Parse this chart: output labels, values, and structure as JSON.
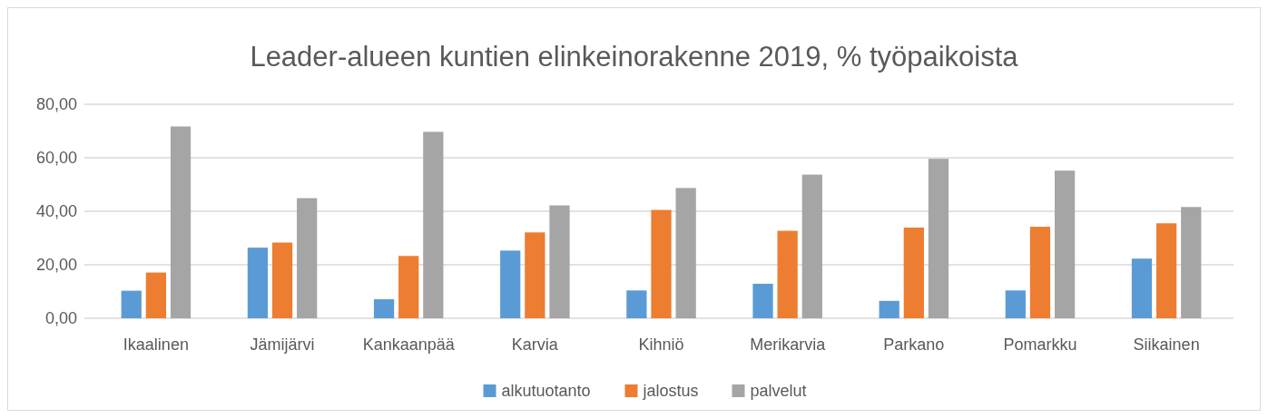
{
  "chart_data": {
    "type": "bar",
    "title": "Leader-alueen kuntien elinkeinorakenne 2019, % työpaikoista",
    "categories": [
      "Ikaalinen",
      "Jämijärvi",
      "Kankaanpää",
      "Karvia",
      "Kihniö",
      "Merikarvia",
      "Parkano",
      "Pomarkku",
      "Siikainen"
    ],
    "series": [
      {
        "name": "alkutuotanto",
        "color": "#5b9bd5",
        "values": [
          10.3,
          26.4,
          7.1,
          25.3,
          10.4,
          12.9,
          6.5,
          10.4,
          22.3
        ]
      },
      {
        "name": "jalostus",
        "color": "#ed7d31",
        "values": [
          17.1,
          28.3,
          23.3,
          32.1,
          40.5,
          32.7,
          33.9,
          34.2,
          35.5
        ]
      },
      {
        "name": "palvelut",
        "color": "#a5a5a5",
        "values": [
          71.7,
          44.9,
          69.7,
          42.2,
          48.7,
          53.7,
          59.6,
          55.2,
          41.6
        ]
      }
    ],
    "ylim": [
      0,
      80
    ],
    "yticks": [
      {
        "value": 0,
        "label": "0,00"
      },
      {
        "value": 20,
        "label": "20,00"
      },
      {
        "value": 40,
        "label": "40,00"
      },
      {
        "value": 60,
        "label": "60,00"
      },
      {
        "value": 80,
        "label": "80,00"
      }
    ],
    "grid": "y",
    "legend": "bottom"
  }
}
